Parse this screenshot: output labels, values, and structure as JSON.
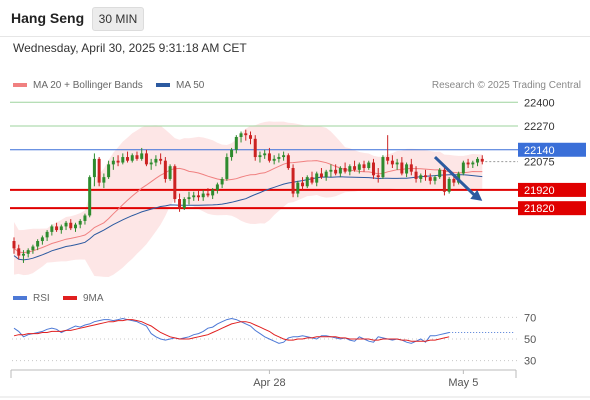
{
  "header": {
    "title": "Hang Seng",
    "timeframe": "30 MIN",
    "datetime": "Wednesday, April 30, 2025 9:31:18 AM CET"
  },
  "legend": {
    "ma20_bb": "MA 20 + Bollinger Bands",
    "ma50": "MA 50",
    "credit": "Research © 2025 Trading Central"
  },
  "rsi_legend": {
    "rsi": "RSI",
    "ma9": "9MA"
  },
  "colors": {
    "ma20": "#f08080",
    "ma50": "#2c5aa0",
    "band_fill": "#fde2e2",
    "candle_up": "#2e8b2e",
    "candle_down": "#cc2222",
    "resistance": "#9ed39e",
    "pivot": "#3a6fd8",
    "support": "#e00000",
    "arrow": "#2c5aa0",
    "rsi_line": "#4d79d6",
    "rsi_ma": "#e02020"
  },
  "chart_data": [
    {
      "type": "candlestick",
      "name": "price",
      "ylim": [
        21410,
        22440
      ],
      "x_ticks": [
        {
          "label": "Apr 28",
          "index": 54
        },
        {
          "label": "May 5",
          "index": 95
        }
      ],
      "levels": [
        {
          "value": 22400,
          "label": "22400",
          "kind": "resistance"
        },
        {
          "value": 22270,
          "label": "22270",
          "kind": "resistance"
        },
        {
          "value": 22140,
          "label": "22140",
          "kind": "pivot"
        },
        {
          "value": 22075,
          "label": "22075",
          "kind": "last"
        },
        {
          "value": 21920,
          "label": "21920",
          "kind": "support"
        },
        {
          "value": 21820,
          "label": "21820",
          "kind": "support"
        }
      ],
      "arrow": {
        "from": [
          89,
          22100
        ],
        "to": [
          99,
          21860
        ]
      },
      "ohlc": [
        [
          21640,
          21660,
          21570,
          21600
        ],
        [
          21600,
          21620,
          21540,
          21560
        ],
        [
          21560,
          21590,
          21520,
          21570
        ],
        [
          21570,
          21600,
          21550,
          21590
        ],
        [
          21590,
          21620,
          21570,
          21610
        ],
        [
          21610,
          21650,
          21590,
          21640
        ],
        [
          21640,
          21670,
          21620,
          21660
        ],
        [
          21660,
          21700,
          21640,
          21690
        ],
        [
          21690,
          21730,
          21670,
          21720
        ],
        [
          21720,
          21740,
          21690,
          21700
        ],
        [
          21700,
          21730,
          21680,
          21720
        ],
        [
          21720,
          21750,
          21700,
          21740
        ],
        [
          21740,
          21760,
          21700,
          21710
        ],
        [
          21710,
          21740,
          21690,
          21730
        ],
        [
          21730,
          21760,
          21710,
          21750
        ],
        [
          21750,
          21790,
          21730,
          21780
        ],
        [
          21780,
          22000,
          21770,
          21990
        ],
        [
          21990,
          22120,
          21940,
          22090
        ],
        [
          22090,
          22100,
          21940,
          21960
        ],
        [
          21960,
          22010,
          21930,
          21990
        ],
        [
          21990,
          22080,
          21980,
          22060
        ],
        [
          22060,
          22100,
          22030,
          22080
        ],
        [
          22080,
          22110,
          22050,
          22070
        ],
        [
          22070,
          22120,
          22060,
          22100
        ],
        [
          22100,
          22130,
          22070,
          22080
        ],
        [
          22080,
          22120,
          22070,
          22110
        ],
        [
          22110,
          22130,
          22080,
          22090
        ],
        [
          22090,
          22150,
          22080,
          22120
        ],
        [
          22120,
          22140,
          22050,
          22060
        ],
        [
          22060,
          22090,
          22030,
          22070
        ],
        [
          22070,
          22110,
          22050,
          22090
        ],
        [
          22090,
          22120,
          22060,
          22080
        ],
        [
          22080,
          22100,
          21960,
          21980
        ],
        [
          21980,
          22060,
          21970,
          22050
        ],
        [
          22050,
          22060,
          21850,
          21870
        ],
        [
          21870,
          21900,
          21800,
          21820
        ],
        [
          21820,
          21880,
          21810,
          21870
        ],
        [
          21870,
          21910,
          21840,
          21880
        ],
        [
          21880,
          21910,
          21860,
          21890
        ],
        [
          21890,
          21920,
          21860,
          21880
        ],
        [
          21880,
          21920,
          21860,
          21900
        ],
        [
          21900,
          21930,
          21880,
          21890
        ],
        [
          21890,
          21930,
          21870,
          21920
        ],
        [
          21920,
          21960,
          21900,
          21950
        ],
        [
          21950,
          21990,
          21930,
          21980
        ],
        [
          21980,
          22120,
          21970,
          22100
        ],
        [
          22100,
          22150,
          22080,
          22140
        ],
        [
          22140,
          22220,
          22120,
          22210
        ],
        [
          22210,
          22240,
          22180,
          22230
        ],
        [
          22230,
          22250,
          22190,
          22220
        ],
        [
          22220,
          22240,
          22170,
          22200
        ],
        [
          22200,
          22220,
          22080,
          22100
        ],
        [
          22100,
          22130,
          22070,
          22110
        ],
        [
          22110,
          22140,
          22090,
          22120
        ],
        [
          22120,
          22150,
          22070,
          22080
        ],
        [
          22080,
          22110,
          22060,
          22090
        ],
        [
          22090,
          22120,
          22070,
          22100
        ],
        [
          22100,
          22130,
          22080,
          22110
        ],
        [
          22110,
          22120,
          22030,
          22040
        ],
        [
          22040,
          22060,
          21880,
          21900
        ],
        [
          21900,
          21970,
          21880,
          21960
        ],
        [
          21960,
          21990,
          21920,
          21940
        ],
        [
          21940,
          22000,
          21930,
          21990
        ],
        [
          21990,
          22020,
          21950,
          21960
        ],
        [
          21960,
          22020,
          21940,
          22010
        ],
        [
          22010,
          22040,
          21980,
          21990
        ],
        [
          21990,
          22030,
          21970,
          22020
        ],
        [
          22020,
          22060,
          21990,
          22030
        ],
        [
          22030,
          22060,
          22000,
          22010
        ],
        [
          22010,
          22050,
          21990,
          22040
        ],
        [
          22040,
          22070,
          22010,
          22020
        ],
        [
          22020,
          22060,
          22000,
          22050
        ],
        [
          22050,
          22080,
          22020,
          22030
        ],
        [
          22030,
          22070,
          22010,
          22060
        ],
        [
          22060,
          22080,
          22020,
          22040
        ],
        [
          22040,
          22080,
          22030,
          22070
        ],
        [
          22070,
          22090,
          21980,
          22000
        ],
        [
          22000,
          22040,
          21960,
          21990
        ],
        [
          21990,
          22110,
          21980,
          22100
        ],
        [
          22100,
          22220,
          22060,
          22080
        ],
        [
          22080,
          22110,
          22040,
          22060
        ],
        [
          22060,
          22090,
          22030,
          22070
        ],
        [
          22070,
          22100,
          22000,
          22010
        ],
        [
          22010,
          22070,
          21990,
          22060
        ],
        [
          22060,
          22090,
          22000,
          22020
        ],
        [
          22020,
          22050,
          21960,
          21980
        ],
        [
          21980,
          22010,
          21960,
          22000
        ],
        [
          22000,
          22030,
          21970,
          21990
        ],
        [
          21990,
          22010,
          21950,
          21970
        ],
        [
          21970,
          22000,
          21950,
          21990
        ],
        [
          21990,
          22040,
          21980,
          22030
        ],
        [
          22030,
          22050,
          21890,
          21910
        ],
        [
          21910,
          21990,
          21900,
          21980
        ],
        [
          21980,
          22000,
          21940,
          21960
        ],
        [
          21960,
          22020,
          21950,
          22010
        ],
        [
          22010,
          22080,
          22000,
          22070
        ],
        [
          22070,
          22090,
          22040,
          22060
        ],
        [
          22060,
          22080,
          22040,
          22070
        ],
        [
          22070,
          22100,
          22050,
          22090
        ],
        [
          22090,
          22110,
          22060,
          22075
        ]
      ]
    },
    {
      "type": "line",
      "name": "rsi",
      "ylim": [
        25,
        75
      ],
      "y_ticks": [
        70,
        50,
        30
      ],
      "series": [
        {
          "key": "rsi",
          "values": [
            60,
            57,
            52,
            54,
            55,
            56,
            57,
            59,
            60,
            59,
            56,
            58,
            60,
            62,
            61,
            63,
            64,
            66,
            67,
            68,
            68,
            67,
            68,
            69,
            68,
            67,
            66,
            64,
            62,
            55,
            52,
            50,
            49,
            50,
            51,
            50,
            51,
            52,
            54,
            55,
            57,
            60,
            61,
            64,
            66,
            68,
            69,
            68,
            66,
            64,
            62,
            58,
            55,
            52,
            50,
            48,
            46,
            47,
            51,
            52,
            52,
            53,
            52,
            51,
            50,
            53,
            53,
            52,
            51,
            50,
            51,
            49,
            48,
            52,
            50,
            48,
            47,
            52,
            51,
            50,
            49,
            50,
            49,
            47,
            46,
            48,
            50,
            47,
            53,
            53,
            54,
            55,
            56
          ]
        },
        {
          "key": "ma9",
          "values": [
            53,
            54,
            54,
            55,
            55,
            55,
            56,
            56,
            57,
            57,
            57,
            58,
            58,
            59,
            60,
            61,
            62,
            63,
            64,
            65,
            66,
            66,
            67,
            67,
            68,
            68,
            67,
            66,
            64,
            62,
            59,
            56,
            54,
            52,
            51,
            50,
            50,
            50,
            51,
            52,
            53,
            54,
            56,
            58,
            60,
            62,
            64,
            65,
            66,
            66,
            65,
            63,
            61,
            59,
            57,
            54,
            52,
            50,
            49,
            49,
            50,
            50,
            51,
            51,
            52,
            52,
            52,
            52,
            52,
            51,
            51,
            50,
            50,
            50,
            50,
            50,
            49,
            49,
            50,
            50,
            50,
            50,
            49,
            49,
            48,
            48,
            48,
            48,
            49,
            49,
            50,
            51,
            52
          ]
        }
      ]
    }
  ]
}
